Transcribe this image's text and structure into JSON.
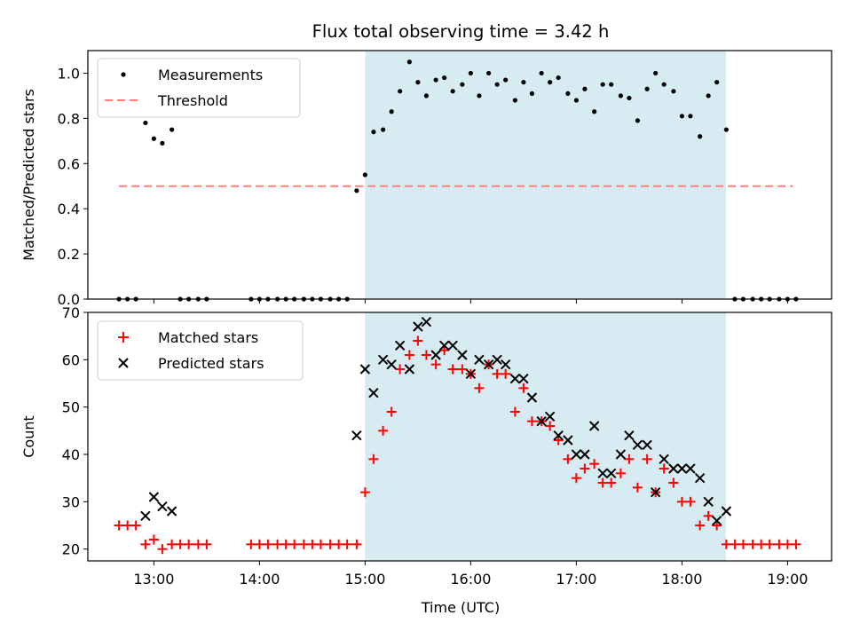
{
  "chart_data": {
    "title": "Flux total observing time = 3.42 h",
    "xlabel": "Time (UTC)",
    "x_unit": "hours UTC",
    "xlim": [
      12.375,
      19.4167
    ],
    "x_tick_labels": [
      "13:00",
      "14:00",
      "15:00",
      "16:00",
      "17:00",
      "18:00",
      "19:00"
    ],
    "x_tick_values": [
      13,
      14,
      15,
      16,
      17,
      18,
      19
    ],
    "shaded_region": {
      "x": [
        15.0,
        18.4167
      ],
      "color": "#add8e6"
    },
    "colors": {
      "measurements": "#000000",
      "threshold": "#ff7f7f",
      "matched": "#ff0000",
      "predicted": "#000000"
    },
    "panels": [
      {
        "type": "scatter",
        "ylabel": "Matched/Predicted stars",
        "ylim": [
          0,
          1.1
        ],
        "y_tick_values": [
          0,
          0.2,
          0.4,
          0.6,
          0.8,
          1.0
        ],
        "y_tick_labels": [
          "0.0",
          "0.2",
          "0.4",
          "0.6",
          "0.8",
          "1.0"
        ],
        "legend": [
          "Measurements",
          "Threshold"
        ],
        "legend_position": "top-left",
        "threshold": {
          "name": "Threshold",
          "y": 0.5,
          "x": [
            12.67,
            19.05
          ]
        },
        "series": [
          {
            "name": "Measurements",
            "marker": "dot",
            "x": [
              12.67,
              12.75,
              12.83,
              12.92,
              13.0,
              13.08,
              13.17,
              13.25,
              13.33,
              13.42,
              13.5,
              13.92,
              14.0,
              14.08,
              14.17,
              14.25,
              14.33,
              14.42,
              14.5,
              14.58,
              14.67,
              14.75,
              14.83,
              14.92,
              15.0,
              15.08,
              15.17,
              15.25,
              15.33,
              15.42,
              15.5,
              15.58,
              15.67,
              15.75,
              15.83,
              15.92,
              16.0,
              16.08,
              16.17,
              16.25,
              16.33,
              16.42,
              16.5,
              16.58,
              16.67,
              16.75,
              16.83,
              16.92,
              17.0,
              17.08,
              17.17,
              17.25,
              17.33,
              17.42,
              17.5,
              17.58,
              17.67,
              17.75,
              17.83,
              17.92,
              18.0,
              18.08,
              18.17,
              18.25,
              18.33,
              18.42,
              18.5,
              18.58,
              18.67,
              18.75,
              18.83,
              18.92,
              19.0,
              19.08
            ],
            "y": [
              0,
              0,
              0,
              0.78,
              0.71,
              0.69,
              0.75,
              0,
              0,
              0,
              0,
              0,
              0,
              0,
              0,
              0,
              0,
              0,
              0,
              0,
              0,
              0,
              0,
              0.48,
              0.55,
              0.74,
              0.75,
              0.83,
              0.92,
              1.05,
              0.96,
              0.9,
              0.97,
              0.98,
              0.92,
              0.95,
              1.0,
              0.9,
              1.0,
              0.95,
              0.97,
              0.88,
              0.96,
              0.91,
              1.0,
              0.96,
              0.98,
              0.91,
              0.88,
              0.93,
              0.83,
              0.95,
              0.95,
              0.9,
              0.89,
              0.79,
              0.93,
              1.0,
              0.95,
              0.92,
              0.81,
              0.81,
              0.72,
              0.9,
              0.96,
              0.75,
              0,
              0,
              0,
              0,
              0,
              0,
              0,
              0
            ]
          }
        ]
      },
      {
        "type": "scatter",
        "ylabel": "Count",
        "ylim": [
          17.5,
          70
        ],
        "y_tick_values": [
          20,
          30,
          40,
          50,
          60,
          70
        ],
        "y_tick_labels": [
          "20",
          "30",
          "40",
          "50",
          "60",
          "70"
        ],
        "legend": [
          "Matched stars",
          "Predicted stars"
        ],
        "legend_position": "top-left",
        "series": [
          {
            "name": "Matched stars",
            "marker": "plus",
            "x": [
              12.67,
              12.75,
              12.83,
              12.92,
              13.0,
              13.08,
              13.17,
              13.25,
              13.33,
              13.42,
              13.5,
              13.92,
              14.0,
              14.08,
              14.17,
              14.25,
              14.33,
              14.42,
              14.5,
              14.58,
              14.67,
              14.75,
              14.83,
              14.92,
              15.0,
              15.08,
              15.17,
              15.25,
              15.33,
              15.42,
              15.5,
              15.58,
              15.67,
              15.75,
              15.83,
              15.92,
              16.0,
              16.08,
              16.17,
              16.25,
              16.33,
              16.42,
              16.5,
              16.58,
              16.67,
              16.75,
              16.83,
              16.92,
              17.0,
              17.08,
              17.17,
              17.25,
              17.33,
              17.42,
              17.5,
              17.58,
              17.67,
              17.75,
              17.83,
              17.92,
              18.0,
              18.08,
              18.17,
              18.25,
              18.33,
              18.42,
              18.5,
              18.58,
              18.67,
              18.75,
              18.83,
              18.92,
              19.0,
              19.08
            ],
            "y": [
              25,
              25,
              25,
              21,
              22,
              20,
              21,
              21,
              21,
              21,
              21,
              21,
              21,
              21,
              21,
              21,
              21,
              21,
              21,
              21,
              21,
              21,
              21,
              21,
              32,
              39,
              45,
              49,
              58,
              61,
              64,
              61,
              59,
              62,
              58,
              58,
              57,
              54,
              59,
              57,
              57,
              49,
              54,
              47,
              47,
              46,
              43,
              39,
              35,
              37,
              38,
              34,
              34,
              36,
              39,
              33,
              39,
              32,
              37,
              34,
              30,
              30,
              25,
              27,
              25,
              21,
              21,
              21,
              21,
              21,
              21,
              21,
              21,
              21
            ]
          },
          {
            "name": "Predicted stars",
            "marker": "x",
            "x": [
              12.92,
              13.0,
              13.08,
              13.17,
              14.92,
              15.0,
              15.08,
              15.17,
              15.25,
              15.33,
              15.42,
              15.5,
              15.58,
              15.67,
              15.75,
              15.83,
              15.92,
              16.0,
              16.08,
              16.17,
              16.25,
              16.33,
              16.42,
              16.5,
              16.58,
              16.67,
              16.75,
              16.83,
              16.92,
              17.0,
              17.08,
              17.17,
              17.25,
              17.33,
              17.42,
              17.5,
              17.58,
              17.67,
              17.75,
              17.83,
              17.92,
              18.0,
              18.08,
              18.17,
              18.25,
              18.33,
              18.42
            ],
            "y": [
              27,
              31,
              29,
              28,
              44,
              58,
              53,
              60,
              59,
              63,
              58,
              67,
              68,
              61,
              63,
              63,
              61,
              57,
              60,
              59,
              60,
              59,
              56,
              56,
              52,
              47,
              48,
              44,
              43,
              40,
              40,
              46,
              36,
              36,
              40,
              44,
              42,
              42,
              32,
              39,
              37,
              37,
              37,
              35,
              30,
              26,
              28
            ]
          }
        ]
      }
    ]
  }
}
